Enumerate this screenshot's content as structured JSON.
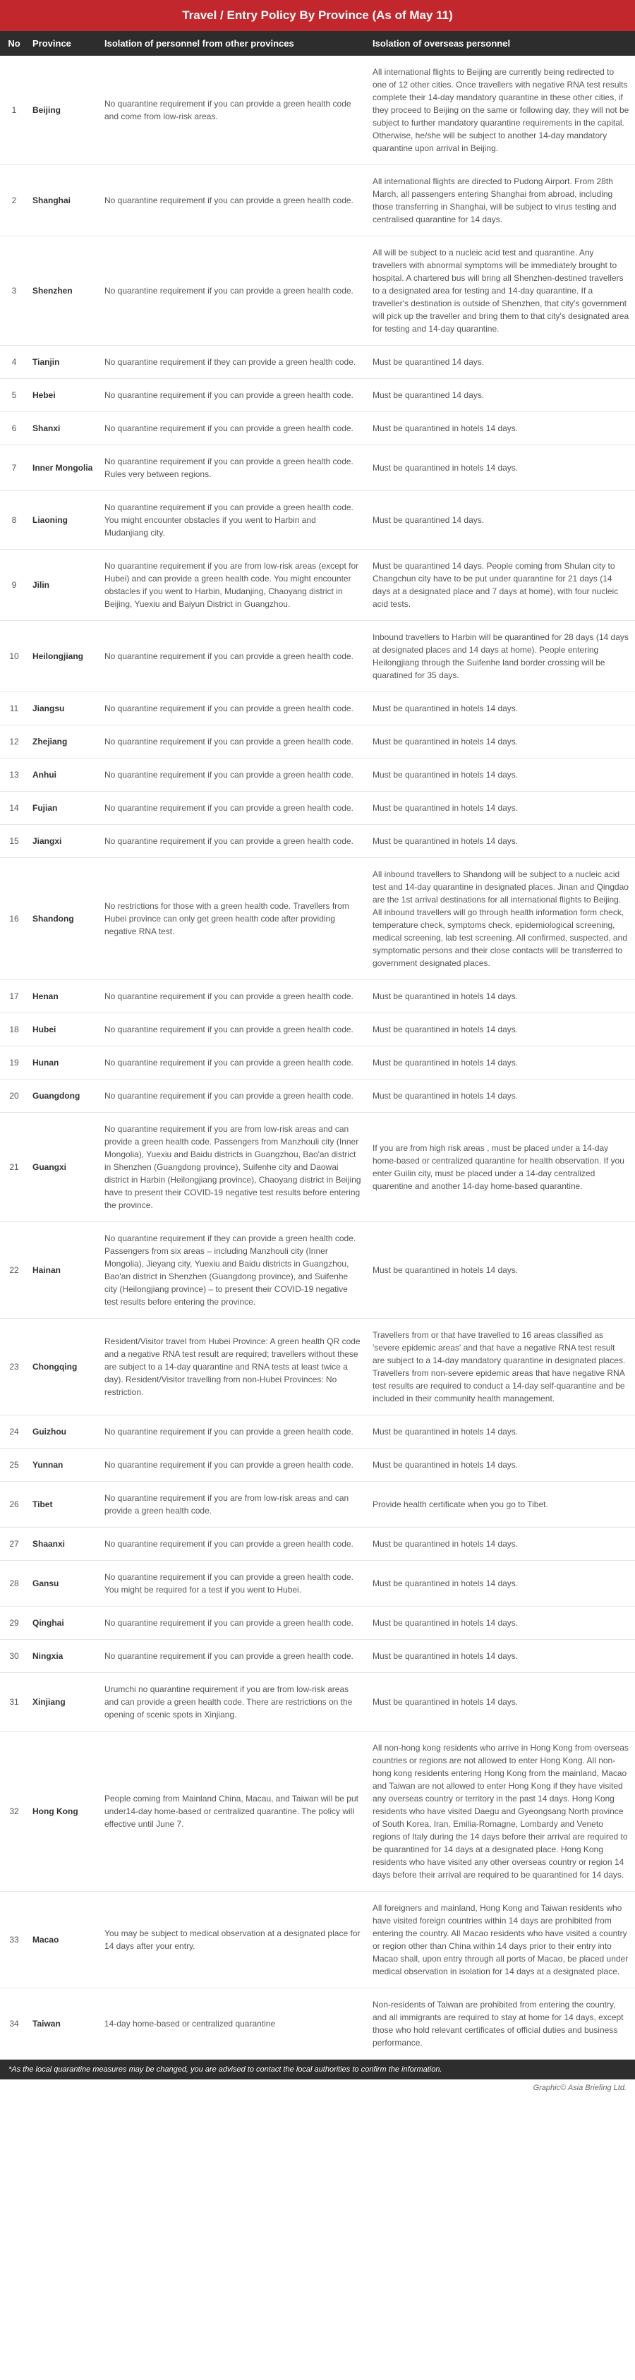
{
  "title": "Travel / Entry Policy By Province (As of May 11)",
  "headers": {
    "no": "No",
    "province": "Province",
    "isolation_other": "Isolation of personnel from other provinces",
    "isolation_overseas": "Isolation of overseas personnel"
  },
  "colors": {
    "title_bg": "#c1272d",
    "header_bg": "#2d2d2d",
    "text": "#555555",
    "border": "#e5e5e5"
  },
  "rows": [
    {
      "no": "1",
      "province": "Beijing",
      "iso1": "No quarantine requirement if you can provide a green health code and come from low-risk areas.",
      "iso2": "All international flights to Beijing are currently being redirected to one of 12 other cities. Once travellers with negative RNA test results complete their 14-day mandatory quarantine in these other cities, if they proceed to Beijing on the same or following day, they will not be subject to further mandatory quarantine requirements in the capital. Otherwise, he/she will be subject to another 14-day mandatory quarantine upon arrival in Beijing."
    },
    {
      "no": "2",
      "province": "Shanghai",
      "iso1": "No quarantine requirement if you can provide a green health code.",
      "iso2": "All international flights are directed to Pudong Airport. From 28th March, all passengers entering Shanghai from abroad, including those transferring in Shanghai, will be subject to virus testing and centralised quarantine for 14 days."
    },
    {
      "no": "3",
      "province": "Shenzhen",
      "iso1": "No quarantine requirement if you can provide a green health code.",
      "iso2": "All will be subject to a nucleic acid test and quarantine. Any travellers with abnormal symptoms will be immediately brought to hospital. A chartered bus will bring all Shenzhen-destined travellers to a designated area for testing and 14-day quarantine. If a traveller's destination is outside of Shenzhen, that city's government will pick up the traveller and bring them to that city's designated area for testing and 14-day quarantine."
    },
    {
      "no": "4",
      "province": "Tianjin",
      "iso1": "No quarantine requirement if they can provide a green health code.",
      "iso2": "Must be quarantined 14 days."
    },
    {
      "no": "5",
      "province": "Hebei",
      "iso1": "No quarantine requirement if you can provide a green health code.",
      "iso2": "Must be quarantined 14 days."
    },
    {
      "no": "6",
      "province": "Shanxi",
      "iso1": "No quarantine requirement if you can provide a green health code.",
      "iso2": "Must be quarantined in hotels 14 days."
    },
    {
      "no": "7",
      "province": "Inner Mongolia",
      "iso1": "No quarantine requirement if you can provide a green health code. Rules very between regions.",
      "iso2": "Must be quarantined in hotels 14 days."
    },
    {
      "no": "8",
      "province": "Liaoning",
      "iso1": "No quarantine requirement if you can provide a green health code. You might encounter obstacles if you went to Harbin and Mudanjiang city.",
      "iso2": "Must be quarantined 14 days."
    },
    {
      "no": "9",
      "province": "Jilin",
      "iso1": "No quarantine requirement if you are from low-risk areas (except for Hubei) and can provide a green health code. You might encounter obstacles if you went to Harbin, Mudanjing, Chaoyang district in Beijing, Yuexiu and Baiyun District in Guangzhou.",
      "iso2": "Must be quarantined 14 days. People coming from Shulan city to Changchun city have to be put under quarantine for 21 days (14 days at a designated place and 7 days at home), with four nucleic acid tests."
    },
    {
      "no": "10",
      "province": "Heilongjiang",
      "iso1": "No quarantine requirement if you can provide a green health code.",
      "iso2": "Inbound travellers to Harbin will be quarantined for 28 days (14 days at designated places and 14 days at home). People entering Heilongjiang through the Suifenhe land border crossing will be quaratined for 35 days."
    },
    {
      "no": "11",
      "province": "Jiangsu",
      "iso1": "No quarantine requirement if you can provide a green health code.",
      "iso2": "Must be quarantined in hotels 14 days."
    },
    {
      "no": "12",
      "province": "Zhejiang",
      "iso1": "No quarantine requirement if you can provide a green health code.",
      "iso2": "Must be quarantined in hotels 14 days."
    },
    {
      "no": "13",
      "province": "Anhui",
      "iso1": "No quarantine requirement if you can provide a green health code.",
      "iso2": "Must be quarantined in hotels 14 days."
    },
    {
      "no": "14",
      "province": "Fujian",
      "iso1": "No quarantine requirement if you can provide a green health code.",
      "iso2": "Must be quarantined in hotels 14 days."
    },
    {
      "no": "15",
      "province": "Jiangxi",
      "iso1": "No quarantine requirement if you can provide a green health code.",
      "iso2": "Must be quarantined in hotels 14 days."
    },
    {
      "no": "16",
      "province": "Shandong",
      "iso1": "No restrictions for those with a green health code. Travellers from Hubei province can only get green health code after providing negative RNA test.",
      "iso2": "All inbound travellers to Shandong will be subject to a nucleic acid test and 14-day quarantine in designated places. Jinan and Qingdao are the 1st arrival destinations for all international flights to Beijing. All inbound travellers will go through health information form check, temperature check, symptoms check, epidemiological screening, medical screening, lab test screening. All confirmed, suspected, and symptomatic persons and their close contacts will be transferred to government designated places."
    },
    {
      "no": "17",
      "province": "Henan",
      "iso1": "No quarantine requirement if you can provide a green health code.",
      "iso2": "Must be quarantined in hotels 14 days."
    },
    {
      "no": "18",
      "province": "Hubei",
      "iso1": "No quarantine requirement if you can provide a green health code.",
      "iso2": "Must be quarantined in hotels 14 days."
    },
    {
      "no": "19",
      "province": "Hunan",
      "iso1": "No quarantine requirement if you can provide a green health code.",
      "iso2": "Must be quarantined in hotels 14 days."
    },
    {
      "no": "20",
      "province": "Guangdong",
      "iso1": "No quarantine requirement if you can provide a green health code.",
      "iso2": "Must be quarantined in hotels 14 days."
    },
    {
      "no": "21",
      "province": "Guangxi",
      "iso1": "No quarantine requirement if you are from low-risk areas and can provide a green health code. Passengers from Manzhouli city (Inner Mongolia), Yuexiu and Baidu districts in Guangzhou, Bao'an district in Shenzhen (Guangdong province), Suifenhe city and Daowai district in Harbin (Heilongjiang province), Chaoyang district in Beijing have to present their COVID-19 negative test results before entering the province.",
      "iso2": "If you are from high risk areas , must be placed under a 14-day home-based or centralized quarantine for health observation. If you enter Guilin city, must be placed under a 14-day centralized quarentine and another 14-day home-based quarantine."
    },
    {
      "no": "22",
      "province": "Hainan",
      "iso1": "No quarantine requirement if they can provide a green health code. Passengers from six areas – including Manzhouli city (Inner Mongolia), Jieyang city, Yuexiu and Baidu districts in Guangzhou, Bao'an district in Shenzhen (Guangdong province), and Suifenhe city (Heilongjiang province) – to present their COVID-19 negative test results before entering the province.",
      "iso2": "Must be quarantined in hotels 14 days."
    },
    {
      "no": "23",
      "province": "Chongqing",
      "iso1": "Resident/Visitor travel from Hubei Province: A green health QR code and a negative RNA test result are required; travellers without these are subject to a 14-day quarantine and RNA tests at least twice a day). Resident/Visitor travelling from non-Hubei Provinces: No restriction.",
      "iso2": "Travellers from or that have travelled to 16 areas classified as 'severe epidemic areas' and that have a negative RNA test result are subject to a 14-day mandatory quarantine in designated places. Travellers from non-severe epidemic areas that have negative RNA test results are required to conduct a 14-day self-quarantine and be included in their community health management."
    },
    {
      "no": "24",
      "province": "Guizhou",
      "iso1": "No quarantine requirement if you can provide a green health code.",
      "iso2": "Must be quarantined in hotels 14 days."
    },
    {
      "no": "25",
      "province": "Yunnan",
      "iso1": "No quarantine requirement if you can provide a green health code.",
      "iso2": "Must be quarantined in hotels 14 days."
    },
    {
      "no": "26",
      "province": "Tibet",
      "iso1": "No quarantine requirement if you are from low-risk areas and can provide a green health code.",
      "iso2": "Provide health certificate when you go to Tibet."
    },
    {
      "no": "27",
      "province": "Shaanxi",
      "iso1": "No quarantine requirement if you can provide a green health code.",
      "iso2": "Must be quarantined in hotels 14 days."
    },
    {
      "no": "28",
      "province": "Gansu",
      "iso1": "No quarantine requirement if you can provide a green health code. You might be required for a test if you went to Hubei.",
      "iso2": "Must be quarantined in hotels 14 days."
    },
    {
      "no": "29",
      "province": "Qinghai",
      "iso1": "No quarantine requirement if you can provide a green health code.",
      "iso2": "Must be quarantined in hotels 14 days."
    },
    {
      "no": "30",
      "province": "Ningxia",
      "iso1": "No quarantine requirement if you can provide a green health code.",
      "iso2": "Must be quarantined in hotels 14 days."
    },
    {
      "no": "31",
      "province": "Xinjiang",
      "iso1": "Urumchi no quarantine requirement if you are from low-risk areas and can provide a green health code. There are restrictions on the opening of scenic spots in Xinjiang.",
      "iso2": "Must be quarantined in hotels 14 days."
    },
    {
      "no": "32",
      "province": "Hong Kong",
      "iso1": "People coming from Mainland China, Macau, and Taiwan will be put under14-day home-based or centralized quarantine. The policy will effective until June 7.",
      "iso2": "All non-hong kong residents who arrive in Hong Kong from overseas countries or regions are not allowed to enter Hong Kong. All non-hong kong residents entering Hong Kong from the mainland, Macao and Taiwan are not allowed to enter Hong Kong if they have visited any overseas country or territory in the past 14 days. Hong Kong residents who have visited Daegu and Gyeongsang North province of South Korea, Iran, Emilia-Romagne, Lombardy and Veneto regions of Italy during the 14 days before their arrival are required to be quarantined for 14 days at a designated place. Hong Kong residents who have visited any other overseas country or region 14 days before their arrival are required to be quarantined for 14 days."
    },
    {
      "no": "33",
      "province": "Macao",
      "iso1": "You may be subject to medical observation at a designated place for 14 days after your entry.",
      "iso2": "All foreigners and mainland, Hong Kong and Taiwan residents who have visited foreign countries within 14 days are prohibited from entering the country. All Macao residents who have visited a country or region other than China within 14 days prior to their entry into Macao shall, upon entry through all ports of Macao, be placed under medical observation in isolation for 14 days at a designated place."
    },
    {
      "no": "34",
      "province": "Taiwan",
      "iso1": "14-day home-based or centralized quarantine",
      "iso2": "Non-residents of Taiwan are prohibited from entering the country, and all immigrants are required to stay at home for 14 days, except those who hold relevant certificates of official duties and business performance."
    }
  ],
  "footer_note": "*As the local quarantine measures may be changed, you are advised to contact the local authorities to confirm the information.",
  "credit": "Graphic© Asia Briefing Ltd."
}
